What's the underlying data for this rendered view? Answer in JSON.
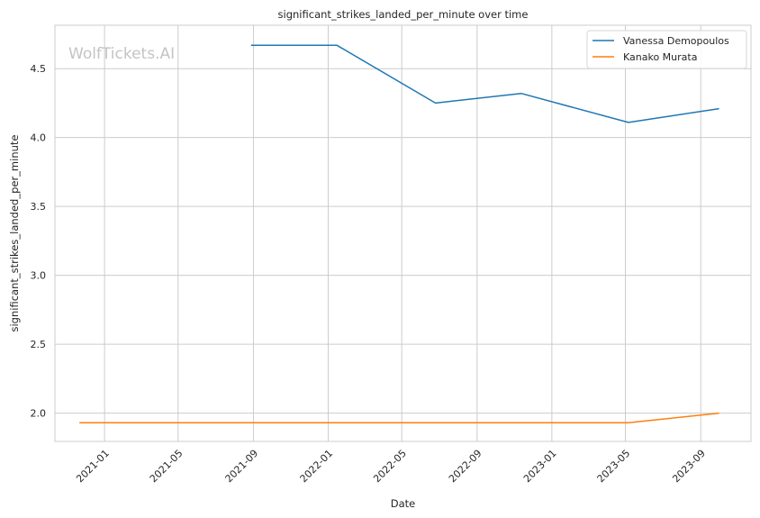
{
  "chart_data": {
    "type": "line",
    "title": "significant_strikes_landed_per_minute over time",
    "xlabel": "Date",
    "ylabel": "significant_strikes_landed_per_minute",
    "watermark": "WolfTickets.AI",
    "xlim": [
      "2020-10-12",
      "2023-11-22"
    ],
    "ylim": [
      1.795,
      4.815
    ],
    "x_ticks": [
      "2021-01-01",
      "2021-05-01",
      "2021-09-01",
      "2022-01-01",
      "2022-05-01",
      "2022-09-01",
      "2023-01-01",
      "2023-05-01",
      "2023-09-01"
    ],
    "x_tick_labels": [
      "2021-01",
      "2021-05",
      "2021-09",
      "2022-01",
      "2022-05",
      "2022-09",
      "2023-01",
      "2023-05",
      "2023-09"
    ],
    "y_ticks": [
      2.0,
      2.5,
      3.0,
      3.5,
      4.0,
      4.5
    ],
    "y_tick_labels": [
      "2.0",
      "2.5",
      "3.0",
      "3.5",
      "4.0",
      "4.5"
    ],
    "grid": true,
    "legend_position": "top-right",
    "series": [
      {
        "name": "Vanessa Demopoulos",
        "color": "#1f77b4",
        "x": [
          "2021-08-28",
          "2022-01-15",
          "2022-06-25",
          "2022-11-12",
          "2023-05-06",
          "2023-10-01"
        ],
        "y": [
          4.67,
          4.67,
          4.25,
          4.32,
          4.11,
          4.21
        ]
      },
      {
        "name": "Kanako Murata",
        "color": "#ff7f0e",
        "x": [
          "2020-11-21",
          "2021-05-01",
          "2021-08-28",
          "2022-01-15",
          "2022-06-25",
          "2022-11-12",
          "2023-05-06",
          "2023-10-01"
        ],
        "y": [
          1.93,
          1.93,
          1.93,
          1.93,
          1.93,
          1.93,
          1.93,
          2.0
        ]
      }
    ]
  }
}
